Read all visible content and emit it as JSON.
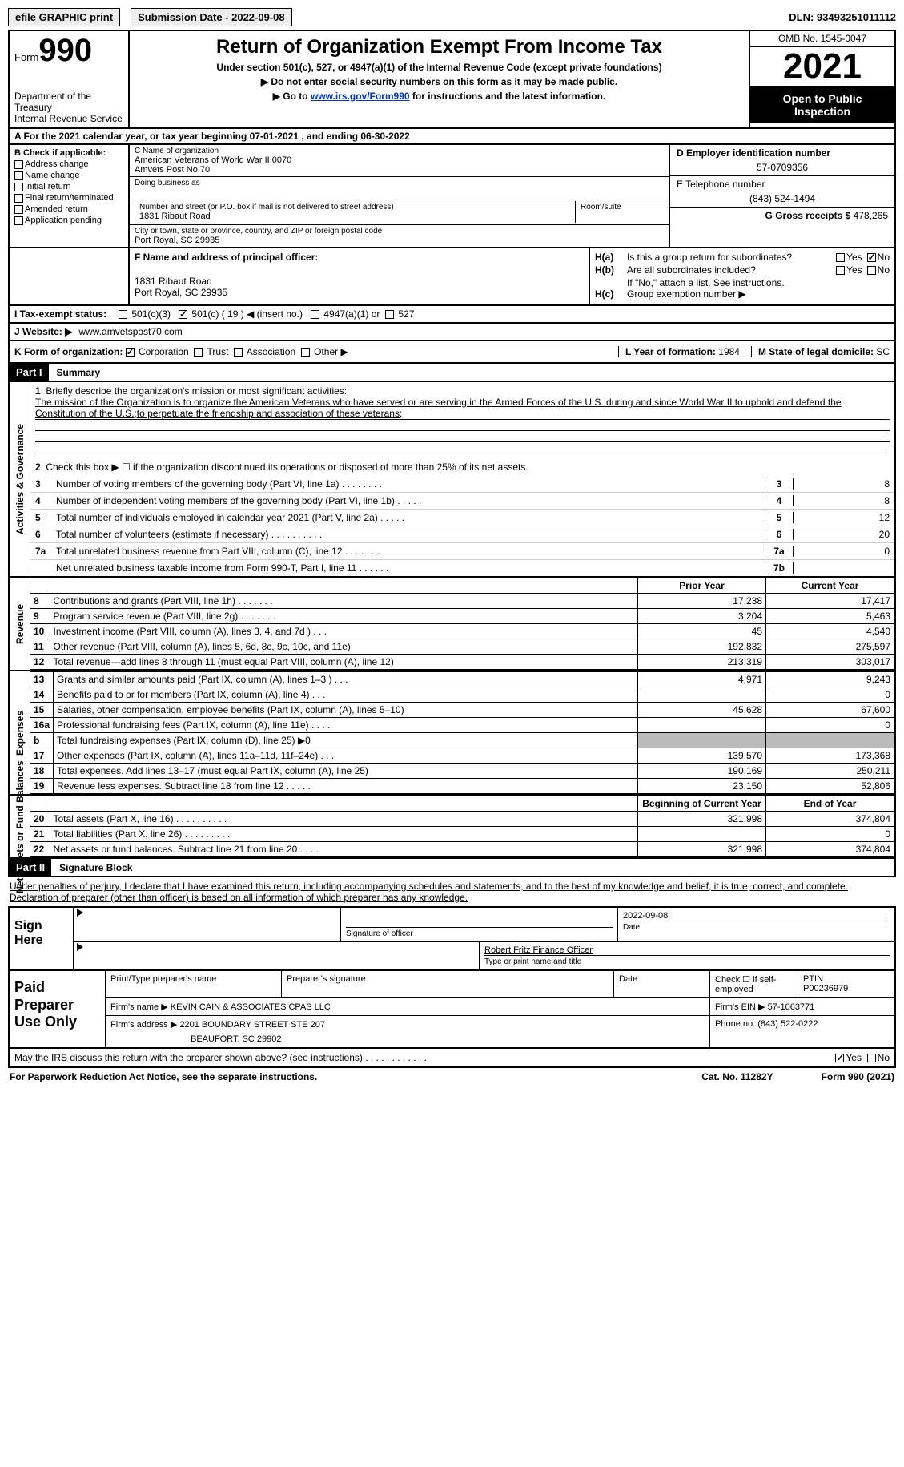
{
  "topbar": {
    "efile_btn": "efile GRAPHIC print",
    "sub_date_label": "Submission Date - ",
    "sub_date": "2022-09-08",
    "dln_label": "DLN: ",
    "dln": "93493251011112"
  },
  "header": {
    "form_word": "Form",
    "form_num": "990",
    "dept": "Department of the Treasury\nInternal Revenue Service",
    "main_title": "Return of Organization Exempt From Income Tax",
    "line1": "Under section 501(c), 527, or 4947(a)(1) of the Internal Revenue Code (except private foundations)",
    "line2": "▶ Do not enter social security numbers on this form as it may be made public.",
    "line3_pre": "▶ Go to ",
    "line3_link": "www.irs.gov/Form990",
    "line3_post": " for instructions and the latest information.",
    "omb": "OMB No. 1545-0047",
    "year": "2021",
    "inspect": "Open to Public Inspection"
  },
  "lineA": {
    "text": "A For the 2021 calendar year, or tax year beginning 07-01-2021   , and ending 06-30-2022"
  },
  "colB": {
    "hdr": "B Check if applicable:",
    "items": [
      "Address change",
      "Name change",
      "Initial return",
      "Final return/terminated",
      "Amended return",
      "Application pending"
    ]
  },
  "colC": {
    "name_lbl": "C Name of organization",
    "name1": "American Veterans of World War II 0070",
    "name2": "Amvets Post No 70",
    "dba_lbl": "Doing business as",
    "addr_lbl": "Number and street (or P.O. box if mail is not delivered to street address)",
    "addr": "1831 Ribaut Road",
    "room_lbl": "Room/suite",
    "city_lbl": "City or town, state or province, country, and ZIP or foreign postal code",
    "city": "Port Royal, SC  29935"
  },
  "colD": {
    "ein_lbl": "D Employer identification number",
    "ein": "57-0709356",
    "tel_lbl": "E Telephone number",
    "tel": "(843) 524-1494",
    "gross_lbl": "G Gross receipts $ ",
    "gross": "478,265"
  },
  "sectF": {
    "lbl": "F  Name and address of principal officer:",
    "addr1": "1831 Ribaut Road",
    "addr2": "Port Royal, SC  29935"
  },
  "sectH": {
    "a_lbl": "H(a)",
    "a_txt": "Is this a group return for subordinates?",
    "a_no": true,
    "b_lbl": "H(b)",
    "b_txt": "Are all subordinates included?",
    "b_note": "If \"No,\" attach a list. See instructions.",
    "c_lbl": "H(c)",
    "c_txt": "Group exemption number ▶"
  },
  "rowI": {
    "lbl": "I  Tax-exempt status:",
    "opt1": "501(c)(3)",
    "opt2": "501(c) ( 19 ) ◀ (insert no.)",
    "opt3": "4947(a)(1) or",
    "opt4": "527"
  },
  "rowJ": {
    "lbl": "J  Website: ▶",
    "val": "www.amvetspost70.com"
  },
  "rowK": {
    "lbl": "K Form of organization:",
    "opts": [
      "Corporation",
      "Trust",
      "Association",
      "Other ▶"
    ],
    "corp_checked": true,
    "l_lbl": "L Year of formation: ",
    "l_val": "1984",
    "m_lbl": "M State of legal domicile: ",
    "m_val": "SC"
  },
  "partI": {
    "hdr": "Part I",
    "title": "Summary"
  },
  "mission": {
    "q1": "Briefly describe the organization's mission or most significant activities:",
    "text": "The mission of the Organization is to organize the American Veterans who have served or are serving in the Armed Forces of the U.S. during and since World War II to uphold and defend the Constitution of the U.S.;to perpetuate the friendship and association of these veterans;",
    "q2": "Check this box ▶ ☐ if the organization discontinued its operations or disposed of more than 25% of its net assets."
  },
  "gov_rows": [
    {
      "n": "3",
      "t": "Number of voting members of the governing body (Part VI, line 1a)  .   .   .   .   .   .   .   .",
      "b": "3",
      "v": "8"
    },
    {
      "n": "4",
      "t": "Number of independent voting members of the governing body (Part VI, line 1b)  .   .   .   .   .",
      "b": "4",
      "v": "8"
    },
    {
      "n": "5",
      "t": "Total number of individuals employed in calendar year 2021 (Part V, line 2a)  .   .   .   .   .",
      "b": "5",
      "v": "12"
    },
    {
      "n": "6",
      "t": "Total number of volunteers (estimate if necessary)   .   .   .   .   .   .   .   .   .   .",
      "b": "6",
      "v": "20"
    },
    {
      "n": "7a",
      "t": "Total unrelated business revenue from Part VIII, column (C), line 12  .   .   .   .   .   .   .",
      "b": "7a",
      "v": "0"
    },
    {
      "n": "",
      "t": "Net unrelated business taxable income from Form 990-T, Part I, line 11  .   .   .   .   .   .",
      "b": "7b",
      "v": ""
    }
  ],
  "side_labels": {
    "gov": "Activities & Governance",
    "rev": "Revenue",
    "exp": "Expenses",
    "net": "Net Assets or Fund Balances"
  },
  "fin_hdr": {
    "py": "Prior Year",
    "cy": "Current Year"
  },
  "rev_rows": [
    {
      "n": "8",
      "t": "Contributions and grants (Part VIII, line 1h)  .   .   .   .   .   .   .",
      "py": "17,238",
      "cy": "17,417"
    },
    {
      "n": "9",
      "t": "Program service revenue (Part VIII, line 2g)  .   .   .   .   .   .   .",
      "py": "3,204",
      "cy": "5,463"
    },
    {
      "n": "10",
      "t": "Investment income (Part VIII, column (A), lines 3, 4, and 7d )  .   .   .",
      "py": "45",
      "cy": "4,540"
    },
    {
      "n": "11",
      "t": "Other revenue (Part VIII, column (A), lines 5, 6d, 8c, 9c, 10c, and 11e)",
      "py": "192,832",
      "cy": "275,597"
    },
    {
      "n": "12",
      "t": "Total revenue—add lines 8 through 11 (must equal Part VIII, column (A), line 12)",
      "py": "213,319",
      "cy": "303,017"
    }
  ],
  "exp_rows": [
    {
      "n": "13",
      "t": "Grants and similar amounts paid (Part IX, column (A), lines 1–3 )  .   .   .",
      "py": "4,971",
      "cy": "9,243"
    },
    {
      "n": "14",
      "t": "Benefits paid to or for members (Part IX, column (A), line 4)  .   .   .",
      "py": "",
      "cy": "0"
    },
    {
      "n": "15",
      "t": "Salaries, other compensation, employee benefits (Part IX, column (A), lines 5–10)",
      "py": "45,628",
      "cy": "67,600"
    },
    {
      "n": "16a",
      "t": "Professional fundraising fees (Part IX, column (A), line 11e)  .   .   .   .",
      "py": "",
      "cy": "0"
    },
    {
      "n": "b",
      "t": "Total fundraising expenses (Part IX, column (D), line 25) ▶0",
      "py": "shade",
      "cy": "shade"
    },
    {
      "n": "17",
      "t": "Other expenses (Part IX, column (A), lines 11a–11d, 11f–24e)  .   .   .",
      "py": "139,570",
      "cy": "173,368"
    },
    {
      "n": "18",
      "t": "Total expenses. Add lines 13–17 (must equal Part IX, column (A), line 25)",
      "py": "190,169",
      "cy": "250,211"
    },
    {
      "n": "19",
      "t": "Revenue less expenses. Subtract line 18 from line 12  .   .   .   .   .",
      "py": "23,150",
      "cy": "52,806"
    }
  ],
  "net_hdr": {
    "py": "Beginning of Current Year",
    "cy": "End of Year"
  },
  "net_rows": [
    {
      "n": "20",
      "t": "Total assets (Part X, line 16)  .   .   .   .   .   .   .   .   .   .",
      "py": "321,998",
      "cy": "374,804"
    },
    {
      "n": "21",
      "t": "Total liabilities (Part X, line 26)  .   .   .   .   .   .   .   .   .",
      "py": "",
      "cy": "0"
    },
    {
      "n": "22",
      "t": "Net assets or fund balances. Subtract line 21 from line 20  .   .   .   .",
      "py": "321,998",
      "cy": "374,804"
    }
  ],
  "partII": {
    "hdr": "Part II",
    "title": "Signature Block"
  },
  "sig_intro": "Under penalties of perjury, I declare that I have examined this return, including accompanying schedules and statements, and to the best of my knowledge and belief, it is true, correct, and complete. Declaration of preparer (other than officer) is based on all information of which preparer has any knowledge.",
  "sign": {
    "lbl": "Sign Here",
    "sig_of": "Signature of officer",
    "date": "2022-09-08",
    "date_lbl": "Date",
    "name": "Robert Fritz  Finance Officer",
    "name_lbl": "Type or print name and title"
  },
  "paid": {
    "lbl": "Paid Preparer Use Only",
    "r1": {
      "c1": "Print/Type preparer's name",
      "c2": "Preparer's signature",
      "c3": "Date",
      "c4_lbl": "Check ☐ if self-employed",
      "c5_lbl": "PTIN",
      "c5": "P00236979"
    },
    "r2": {
      "lbl": "Firm's name    ▶",
      "val": "KEVIN CAIN & ASSOCIATES CPAS LLC",
      "ein_lbl": "Firm's EIN ▶",
      "ein": "57-1063771"
    },
    "r3": {
      "lbl": "Firm's address ▶",
      "val1": "2201 BOUNDARY STREET STE 207",
      "val2": "BEAUFORT, SC  29902",
      "ph_lbl": "Phone no.",
      "ph": "(843) 522-0222"
    }
  },
  "discuss": {
    "txt": "May the IRS discuss this return with the preparer shown above? (see instructions)  .   .   .   .   .   .   .   .   .   .   .   .",
    "yes": "Yes",
    "no": "No"
  },
  "footer": {
    "l": "For Paperwork Reduction Act Notice, see the separate instructions.",
    "c": "Cat. No. 11282Y",
    "r": "Form 990 (2021)"
  }
}
